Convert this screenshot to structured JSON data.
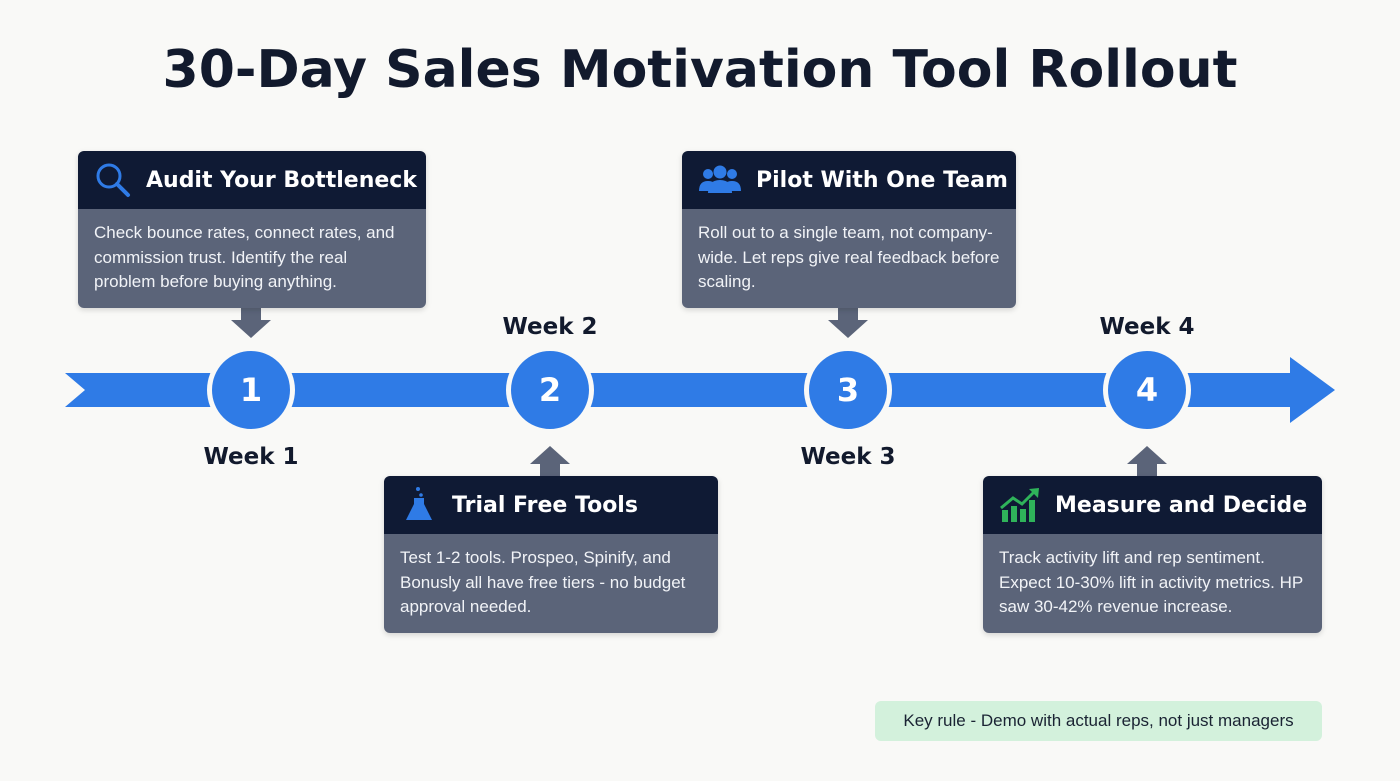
{
  "title": "30-Day Sales Motivation Tool Rollout",
  "colors": {
    "accent": "#2f7be6",
    "card_header": "#0f1a34",
    "card_body": "#5b6479",
    "connector": "#5b6479",
    "key_bg": "#d3f1dc",
    "icon_green": "#2fb35a"
  },
  "steps": [
    {
      "number": "1",
      "week": "Week 1",
      "title": "Audit Your Bottleneck",
      "icon": "magnifier-icon",
      "body": "Check bounce rates, connect rates, and commission trust. Identify the real problem before buying anything."
    },
    {
      "number": "2",
      "week": "Week 2",
      "title": "Trial Free Tools",
      "icon": "flask-icon",
      "body": "Test 1-2 tools. Prospeo, Spinify, and Bonusly all have free tiers - no budget approval needed."
    },
    {
      "number": "3",
      "week": "Week 3",
      "title": "Pilot With One Team",
      "icon": "team-icon",
      "body": "Roll out to a single team, not company-wide. Let reps give real feedback before scaling."
    },
    {
      "number": "4",
      "week": "Week 4",
      "title": "Measure and Decide",
      "icon": "growth-chart-icon",
      "body": "Track activity lift and rep sentiment. Expect 10-30% lift in activity metrics. HP saw 30-42% revenue increase."
    }
  ],
  "key_rule": "Key rule - Demo with actual reps, not just managers"
}
